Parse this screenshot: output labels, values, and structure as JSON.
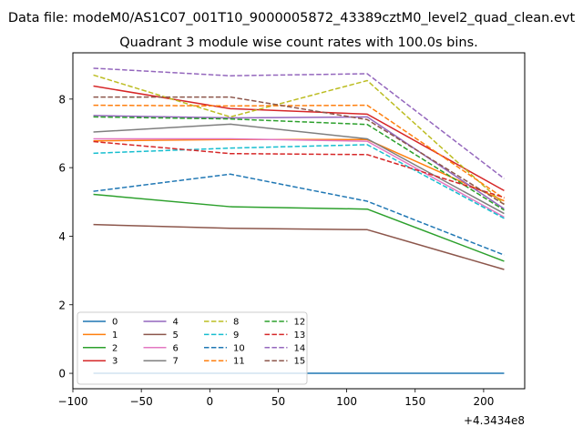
{
  "figure": {
    "suptitle": "Data file: modeM0/AS1C07_001T10_9000005872_43389cztM0_level2_quad_clean.evt",
    "title": "Quadrant 3 module wise count rates with 100.0s bins.",
    "offset_label": "+4.3434e8"
  },
  "chart_data": {
    "type": "line",
    "title": "Quadrant 3 module wise count rates with 100.0s bins.",
    "xlim": [
      -100,
      230
    ],
    "ylim": [
      -0.45,
      9.35
    ],
    "x_offset_label": "+4.3434e8",
    "x_ticks": [
      -100,
      -50,
      0,
      50,
      100,
      150,
      200
    ],
    "x_tick_labels": [
      "−100",
      "−50",
      "0",
      "50",
      "100",
      "150",
      "200"
    ],
    "y_ticks": [
      0,
      2,
      4,
      6,
      8
    ],
    "y_tick_labels": [
      "0",
      "2",
      "4",
      "6",
      "8"
    ],
    "grid": false,
    "legend_placement": "lower-left",
    "legend_columns": 4,
    "x": [
      -85,
      15,
      115,
      215
    ],
    "series": [
      {
        "name": "0",
        "color": "#1f77b4",
        "dash": false,
        "values": [
          0.0,
          0.0,
          0.0,
          0.0
        ]
      },
      {
        "name": "1",
        "color": "#ff7f0e",
        "dash": false,
        "values": [
          6.78,
          6.82,
          6.82,
          5.03
        ]
      },
      {
        "name": "2",
        "color": "#2ca02c",
        "dash": false,
        "values": [
          5.22,
          4.86,
          4.79,
          3.27
        ]
      },
      {
        "name": "3",
        "color": "#d62728",
        "dash": false,
        "values": [
          8.38,
          7.72,
          7.56,
          5.33
        ]
      },
      {
        "name": "4",
        "color": "#9467bd",
        "dash": false,
        "values": [
          7.52,
          7.45,
          7.48,
          4.8
        ]
      },
      {
        "name": "5",
        "color": "#8c564b",
        "dash": false,
        "values": [
          4.34,
          4.23,
          4.19,
          3.03
        ]
      },
      {
        "name": "6",
        "color": "#e377c2",
        "dash": false,
        "values": [
          6.84,
          6.84,
          6.77,
          4.56
        ]
      },
      {
        "name": "7",
        "color": "#7f7f7f",
        "dash": false,
        "values": [
          7.04,
          7.27,
          6.84,
          4.66
        ]
      },
      {
        "name": "8",
        "color": "#bcbd22",
        "dash": true,
        "values": [
          8.7,
          7.48,
          8.54,
          4.93
        ]
      },
      {
        "name": "9",
        "color": "#17becf",
        "dash": true,
        "values": [
          6.42,
          6.57,
          6.67,
          4.52
        ]
      },
      {
        "name": "10",
        "color": "#1f77b4",
        "dash": true,
        "values": [
          5.31,
          5.81,
          5.02,
          3.45
        ]
      },
      {
        "name": "11",
        "color": "#ff7f0e",
        "dash": true,
        "values": [
          7.82,
          7.8,
          7.82,
          5.1
        ]
      },
      {
        "name": "12",
        "color": "#2ca02c",
        "dash": true,
        "values": [
          7.48,
          7.42,
          7.26,
          4.76
        ]
      },
      {
        "name": "13",
        "color": "#d62728",
        "dash": true,
        "values": [
          6.76,
          6.41,
          6.38,
          5.13
        ]
      },
      {
        "name": "14",
        "color": "#9467bd",
        "dash": true,
        "values": [
          8.9,
          8.68,
          8.74,
          5.68
        ]
      },
      {
        "name": "15",
        "color": "#8c564b",
        "dash": true,
        "values": [
          8.06,
          8.06,
          7.4,
          4.93
        ]
      }
    ]
  }
}
